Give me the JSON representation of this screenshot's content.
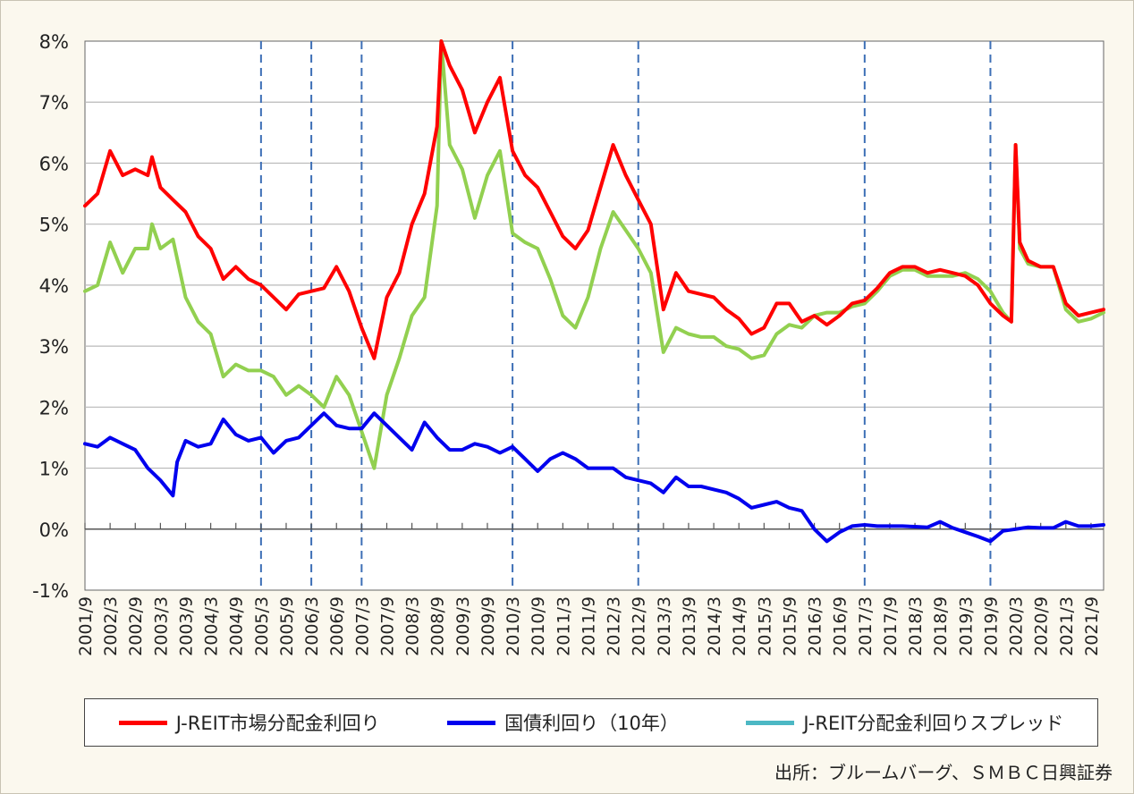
{
  "chart_data": {
    "type": "line",
    "x_start": "2001/9",
    "x_end": "2021/12",
    "x_tick_labels": [
      "2001/9",
      "2002/3",
      "2002/9",
      "2003/3",
      "2003/9",
      "2004/3",
      "2004/9",
      "2005/3",
      "2005/9",
      "2006/3",
      "2006/9",
      "2007/3",
      "2007/9",
      "2008/3",
      "2008/9",
      "2009/3",
      "2009/9",
      "2010/3",
      "2010/9",
      "2011/3",
      "2011/9",
      "2012/3",
      "2012/9",
      "2013/3",
      "2013/9",
      "2014/3",
      "2014/9",
      "2015/3",
      "2015/9",
      "2016/3",
      "2016/9",
      "2017/3",
      "2017/9",
      "2018/3",
      "2018/9",
      "2019/3",
      "2019/9",
      "2020/3",
      "2020/9",
      "2021/3",
      "2021/9"
    ],
    "y_tick_labels": [
      "8%",
      "7%",
      "6%",
      "5%",
      "4%",
      "3%",
      "2%",
      "1%",
      "0%",
      "-1%"
    ],
    "ylim": [
      -1,
      8
    ],
    "grid": true,
    "reference_lines_dates": [
      "2005/3",
      "2006/3",
      "2007/3",
      "2010/3",
      "2012/9",
      "2017/3",
      "2019/9"
    ],
    "series": [
      {
        "name": "J-REIT市場分配金利回り",
        "color": "#ff0000",
        "points": [
          [
            "2001/9",
            5.3
          ],
          [
            "2001/12",
            5.5
          ],
          [
            "2002/3",
            6.2
          ],
          [
            "2002/6",
            5.8
          ],
          [
            "2002/9",
            5.9
          ],
          [
            "2002/12",
            5.8
          ],
          [
            "2003/1",
            6.1
          ],
          [
            "2003/3",
            5.6
          ],
          [
            "2003/6",
            5.4
          ],
          [
            "2003/9",
            5.2
          ],
          [
            "2003/12",
            4.8
          ],
          [
            "2004/3",
            4.6
          ],
          [
            "2004/6",
            4.1
          ],
          [
            "2004/9",
            4.3
          ],
          [
            "2004/12",
            4.1
          ],
          [
            "2005/3",
            4.0
          ],
          [
            "2005/6",
            3.8
          ],
          [
            "2005/9",
            3.6
          ],
          [
            "2005/12",
            3.85
          ],
          [
            "2006/3",
            3.9
          ],
          [
            "2006/6",
            3.95
          ],
          [
            "2006/9",
            4.3
          ],
          [
            "2006/12",
            3.9
          ],
          [
            "2007/3",
            3.3
          ],
          [
            "2007/6",
            2.8
          ],
          [
            "2007/9",
            3.8
          ],
          [
            "2007/12",
            4.2
          ],
          [
            "2008/3",
            5.0
          ],
          [
            "2008/6",
            5.5
          ],
          [
            "2008/9",
            6.6
          ],
          [
            "2008/10",
            8.0
          ],
          [
            "2008/12",
            7.6
          ],
          [
            "2009/3",
            7.2
          ],
          [
            "2009/6",
            6.5
          ],
          [
            "2009/9",
            7.0
          ],
          [
            "2009/12",
            7.4
          ],
          [
            "2010/3",
            6.2
          ],
          [
            "2010/6",
            5.8
          ],
          [
            "2010/9",
            5.6
          ],
          [
            "2010/12",
            5.2
          ],
          [
            "2011/3",
            4.8
          ],
          [
            "2011/6",
            4.6
          ],
          [
            "2011/9",
            4.9
          ],
          [
            "2011/12",
            5.6
          ],
          [
            "2012/3",
            6.3
          ],
          [
            "2012/6",
            5.8
          ],
          [
            "2012/9",
            5.4
          ],
          [
            "2012/12",
            5.0
          ],
          [
            "2013/3",
            3.6
          ],
          [
            "2013/6",
            4.2
          ],
          [
            "2013/9",
            3.9
          ],
          [
            "2013/12",
            3.85
          ],
          [
            "2014/3",
            3.8
          ],
          [
            "2014/6",
            3.6
          ],
          [
            "2014/9",
            3.45
          ],
          [
            "2014/12",
            3.2
          ],
          [
            "2015/3",
            3.3
          ],
          [
            "2015/6",
            3.7
          ],
          [
            "2015/9",
            3.7
          ],
          [
            "2015/12",
            3.4
          ],
          [
            "2016/3",
            3.5
          ],
          [
            "2016/6",
            3.35
          ],
          [
            "2016/9",
            3.5
          ],
          [
            "2016/12",
            3.7
          ],
          [
            "2017/3",
            3.75
          ],
          [
            "2017/6",
            3.95
          ],
          [
            "2017/9",
            4.2
          ],
          [
            "2017/12",
            4.3
          ],
          [
            "2018/3",
            4.3
          ],
          [
            "2018/6",
            4.2
          ],
          [
            "2018/9",
            4.25
          ],
          [
            "2018/12",
            4.2
          ],
          [
            "2019/3",
            4.15
          ],
          [
            "2019/6",
            4.0
          ],
          [
            "2019/9",
            3.7
          ],
          [
            "2019/12",
            3.5
          ],
          [
            "2020/2",
            3.4
          ],
          [
            "2020/3",
            6.3
          ],
          [
            "2020/4",
            4.7
          ],
          [
            "2020/6",
            4.4
          ],
          [
            "2020/9",
            4.3
          ],
          [
            "2020/12",
            4.3
          ],
          [
            "2021/3",
            3.7
          ],
          [
            "2021/6",
            3.5
          ],
          [
            "2021/9",
            3.55
          ],
          [
            "2021/12",
            3.6
          ]
        ]
      },
      {
        "name": "国債利回り（10年）",
        "color": "#0000ee",
        "points": [
          [
            "2001/9",
            1.4
          ],
          [
            "2001/12",
            1.35
          ],
          [
            "2002/3",
            1.5
          ],
          [
            "2002/6",
            1.4
          ],
          [
            "2002/9",
            1.3
          ],
          [
            "2002/12",
            1.0
          ],
          [
            "2003/3",
            0.8
          ],
          [
            "2003/6",
            0.55
          ],
          [
            "2003/7",
            1.1
          ],
          [
            "2003/9",
            1.45
          ],
          [
            "2003/12",
            1.35
          ],
          [
            "2004/3",
            1.4
          ],
          [
            "2004/6",
            1.8
          ],
          [
            "2004/9",
            1.55
          ],
          [
            "2004/12",
            1.45
          ],
          [
            "2005/3",
            1.5
          ],
          [
            "2005/6",
            1.25
          ],
          [
            "2005/9",
            1.45
          ],
          [
            "2005/12",
            1.5
          ],
          [
            "2006/3",
            1.7
          ],
          [
            "2006/6",
            1.9
          ],
          [
            "2006/9",
            1.7
          ],
          [
            "2006/12",
            1.65
          ],
          [
            "2007/3",
            1.65
          ],
          [
            "2007/6",
            1.9
          ],
          [
            "2007/9",
            1.7
          ],
          [
            "2007/12",
            1.5
          ],
          [
            "2008/3",
            1.3
          ],
          [
            "2008/6",
            1.75
          ],
          [
            "2008/9",
            1.5
          ],
          [
            "2008/12",
            1.3
          ],
          [
            "2009/3",
            1.3
          ],
          [
            "2009/6",
            1.4
          ],
          [
            "2009/9",
            1.35
          ],
          [
            "2009/12",
            1.25
          ],
          [
            "2010/3",
            1.35
          ],
          [
            "2010/6",
            1.15
          ],
          [
            "2010/9",
            0.95
          ],
          [
            "2010/12",
            1.15
          ],
          [
            "2011/3",
            1.25
          ],
          [
            "2011/6",
            1.15
          ],
          [
            "2011/9",
            1.0
          ],
          [
            "2011/12",
            1.0
          ],
          [
            "2012/3",
            1.0
          ],
          [
            "2012/6",
            0.85
          ],
          [
            "2012/9",
            0.8
          ],
          [
            "2012/12",
            0.75
          ],
          [
            "2013/3",
            0.6
          ],
          [
            "2013/6",
            0.85
          ],
          [
            "2013/9",
            0.7
          ],
          [
            "2013/12",
            0.7
          ],
          [
            "2014/3",
            0.65
          ],
          [
            "2014/6",
            0.6
          ],
          [
            "2014/9",
            0.5
          ],
          [
            "2014/12",
            0.35
          ],
          [
            "2015/3",
            0.4
          ],
          [
            "2015/6",
            0.45
          ],
          [
            "2015/9",
            0.35
          ],
          [
            "2015/12",
            0.3
          ],
          [
            "2016/3",
            0.0
          ],
          [
            "2016/6",
            -0.2
          ],
          [
            "2016/9",
            -0.05
          ],
          [
            "2016/12",
            0.05
          ],
          [
            "2017/3",
            0.07
          ],
          [
            "2017/6",
            0.05
          ],
          [
            "2017/9",
            0.05
          ],
          [
            "2017/12",
            0.05
          ],
          [
            "2018/3",
            0.04
          ],
          [
            "2018/6",
            0.03
          ],
          [
            "2018/9",
            0.12
          ],
          [
            "2018/12",
            0.02
          ],
          [
            "2019/3",
            -0.05
          ],
          [
            "2019/6",
            -0.12
          ],
          [
            "2019/9",
            -0.2
          ],
          [
            "2019/12",
            -0.03
          ],
          [
            "2020/3",
            0.0
          ],
          [
            "2020/6",
            0.03
          ],
          [
            "2020/9",
            0.02
          ],
          [
            "2020/12",
            0.02
          ],
          [
            "2021/3",
            0.12
          ],
          [
            "2021/6",
            0.05
          ],
          [
            "2021/9",
            0.05
          ],
          [
            "2021/12",
            0.07
          ]
        ]
      },
      {
        "name": "J-REIT分配金利回りスプレッド",
        "color": "#4cb8c4",
        "plot_color": "#92d050",
        "points": [
          [
            "2001/9",
            3.9
          ],
          [
            "2001/12",
            4.0
          ],
          [
            "2002/3",
            4.7
          ],
          [
            "2002/6",
            4.2
          ],
          [
            "2002/9",
            4.6
          ],
          [
            "2002/12",
            4.6
          ],
          [
            "2003/1",
            5.0
          ],
          [
            "2003/3",
            4.6
          ],
          [
            "2003/6",
            4.75
          ],
          [
            "2003/9",
            3.8
          ],
          [
            "2003/12",
            3.4
          ],
          [
            "2004/3",
            3.2
          ],
          [
            "2004/6",
            2.5
          ],
          [
            "2004/9",
            2.7
          ],
          [
            "2004/12",
            2.6
          ],
          [
            "2005/3",
            2.6
          ],
          [
            "2005/6",
            2.5
          ],
          [
            "2005/9",
            2.2
          ],
          [
            "2005/12",
            2.35
          ],
          [
            "2006/3",
            2.2
          ],
          [
            "2006/6",
            2.0
          ],
          [
            "2006/9",
            2.5
          ],
          [
            "2006/12",
            2.2
          ],
          [
            "2007/3",
            1.6
          ],
          [
            "2007/6",
            1.0
          ],
          [
            "2007/9",
            2.2
          ],
          [
            "2007/12",
            2.8
          ],
          [
            "2008/3",
            3.5
          ],
          [
            "2008/6",
            3.8
          ],
          [
            "2008/9",
            5.3
          ],
          [
            "2008/10",
            8.0
          ],
          [
            "2008/12",
            6.3
          ],
          [
            "2009/3",
            5.9
          ],
          [
            "2009/6",
            5.1
          ],
          [
            "2009/9",
            5.8
          ],
          [
            "2009/12",
            6.2
          ],
          [
            "2010/3",
            4.85
          ],
          [
            "2010/6",
            4.7
          ],
          [
            "2010/9",
            4.6
          ],
          [
            "2010/12",
            4.1
          ],
          [
            "2011/3",
            3.5
          ],
          [
            "2011/6",
            3.3
          ],
          [
            "2011/9",
            3.8
          ],
          [
            "2011/12",
            4.6
          ],
          [
            "2012/3",
            5.2
          ],
          [
            "2012/6",
            4.9
          ],
          [
            "2012/9",
            4.6
          ],
          [
            "2012/12",
            4.2
          ],
          [
            "2013/3",
            2.9
          ],
          [
            "2013/6",
            3.3
          ],
          [
            "2013/9",
            3.2
          ],
          [
            "2013/12",
            3.15
          ],
          [
            "2014/3",
            3.15
          ],
          [
            "2014/6",
            3.0
          ],
          [
            "2014/9",
            2.95
          ],
          [
            "2014/12",
            2.8
          ],
          [
            "2015/3",
            2.85
          ],
          [
            "2015/6",
            3.2
          ],
          [
            "2015/9",
            3.35
          ],
          [
            "2015/12",
            3.3
          ],
          [
            "2016/3",
            3.5
          ],
          [
            "2016/6",
            3.55
          ],
          [
            "2016/9",
            3.55
          ],
          [
            "2016/12",
            3.65
          ],
          [
            "2017/3",
            3.7
          ],
          [
            "2017/6",
            3.9
          ],
          [
            "2017/9",
            4.15
          ],
          [
            "2017/12",
            4.25
          ],
          [
            "2018/3",
            4.25
          ],
          [
            "2018/6",
            4.15
          ],
          [
            "2018/9",
            4.15
          ],
          [
            "2018/12",
            4.15
          ],
          [
            "2019/3",
            4.2
          ],
          [
            "2019/6",
            4.1
          ],
          [
            "2019/9",
            3.9
          ],
          [
            "2019/12",
            3.55
          ],
          [
            "2020/2",
            3.4
          ],
          [
            "2020/3",
            6.3
          ],
          [
            "2020/4",
            4.6
          ],
          [
            "2020/6",
            4.35
          ],
          [
            "2020/9",
            4.3
          ],
          [
            "2020/12",
            4.3
          ],
          [
            "2021/3",
            3.6
          ],
          [
            "2021/6",
            3.4
          ],
          [
            "2021/9",
            3.45
          ],
          [
            "2021/12",
            3.55
          ]
        ]
      }
    ],
    "source": "出所：ブルームバーグ、ＳＭＢＣ日興証券"
  }
}
